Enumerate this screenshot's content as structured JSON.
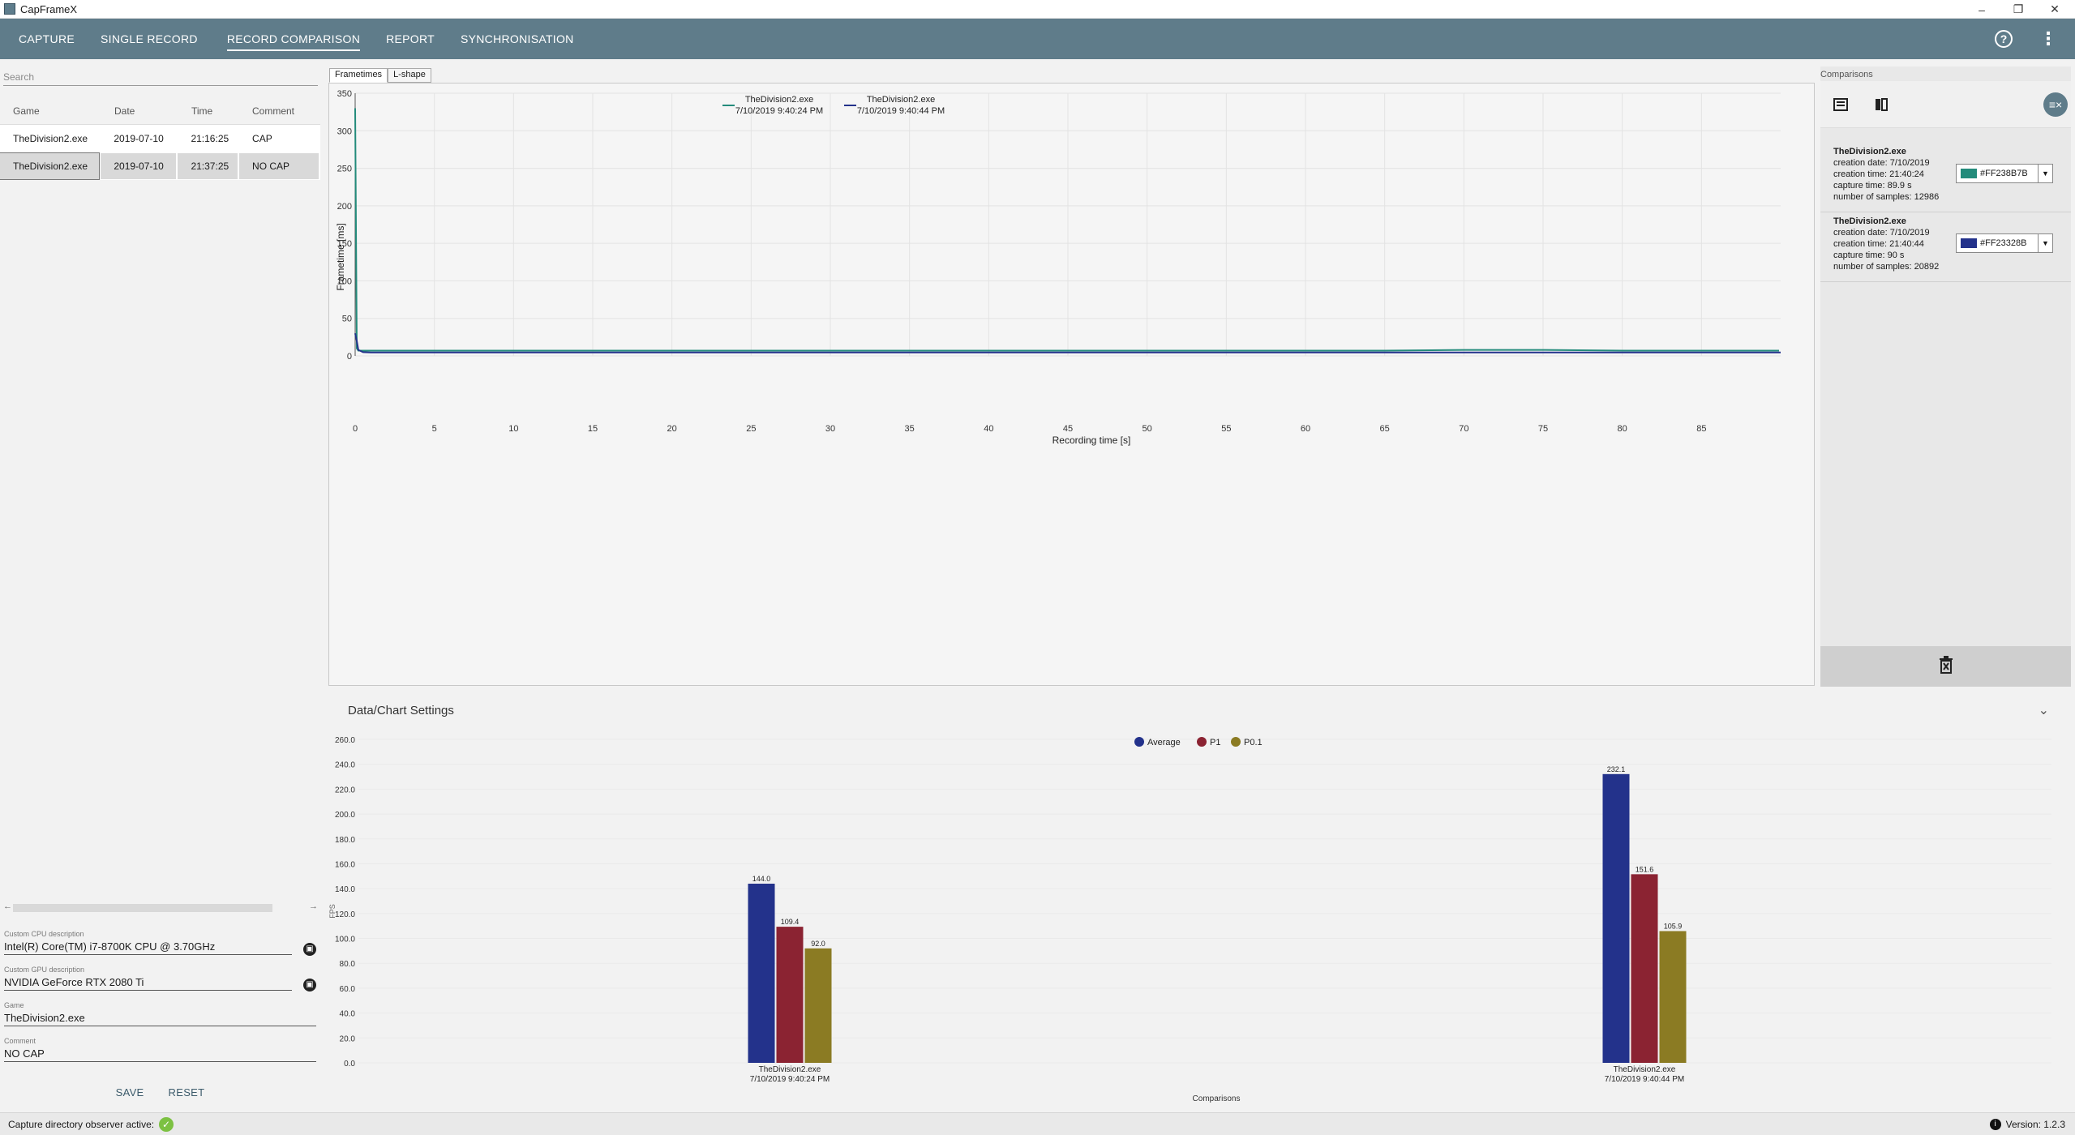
{
  "window": {
    "title": "CapFrameX"
  },
  "nav": {
    "tabs": [
      "CAPTURE",
      "SINGLE RECORD",
      "RECORD COMPARISON",
      "REPORT",
      "SYNCHRONISATION"
    ],
    "active": "RECORD COMPARISON"
  },
  "left": {
    "search_placeholder": "Search",
    "columns": [
      "Game",
      "Date",
      "Time",
      "Comment"
    ],
    "rows": [
      [
        "TheDivision2.exe",
        "2019-07-10",
        "21:16:25",
        "CAP"
      ],
      [
        "TheDivision2.exe",
        "2019-07-10",
        "21:37:25",
        "NO CAP"
      ]
    ],
    "selected_row": 1,
    "cpu_label": "Custom CPU description",
    "cpu_value": "Intel(R) Core(TM) i7-8700K CPU @ 3.70GHz",
    "gpu_label": "Custom GPU description",
    "gpu_value": "NVIDIA GeForce RTX 2080 Ti",
    "game_label": "Game",
    "game_value": "TheDivision2.exe",
    "comment_label": "Comment",
    "comment_value": "NO CAP",
    "save": "SAVE",
    "reset": "RESET"
  },
  "chart_tabs": [
    "Frametimes",
    "L-shape"
  ],
  "settings_title": "Data/Chart Settings",
  "right": {
    "title": "Comparisons",
    "items": [
      {
        "name": "TheDivision2.exe",
        "creation_date": "creation date: 7/10/2019",
        "creation_time": "creation time: 21:40:24",
        "capture_time": "capture time: 89.9 s",
        "samples": "number of samples: 12986",
        "color_label": "#FF238B7B",
        "color": "#238B7B"
      },
      {
        "name": "TheDivision2.exe",
        "creation_date": "creation date: 7/10/2019",
        "creation_time": "creation time: 21:40:44",
        "capture_time": "capture time: 90 s",
        "samples": "number of samples: 20892",
        "color_label": "#FF23328B",
        "color": "#23328B"
      }
    ]
  },
  "status": {
    "observer": "Capture directory observer active:",
    "version": "Version:  1.2.3"
  },
  "chart_data": [
    {
      "type": "line",
      "xlabel": "Recording time [s]",
      "ylabel": "Frametime [ms]",
      "xlim": [
        0,
        90
      ],
      "ylim": [
        0,
        350
      ],
      "xticks": [
        0,
        5,
        10,
        15,
        20,
        25,
        30,
        35,
        40,
        45,
        50,
        55,
        60,
        65,
        70,
        75,
        80,
        85
      ],
      "yticks": [
        0,
        50,
        100,
        150,
        200,
        250,
        300,
        350
      ],
      "legend_position": "top-center",
      "series": [
        {
          "name": "TheDivision2.exe\n7/10/2019 9:40:24 PM",
          "color": "#238B7B",
          "x": [
            0,
            0.1,
            0.2,
            0.5,
            1,
            5,
            10,
            15,
            20,
            25,
            30,
            35,
            40,
            45,
            50,
            55,
            60,
            65,
            70,
            75,
            80,
            85,
            89.9
          ],
          "y": [
            330,
            10,
            7,
            7,
            7,
            7,
            7,
            7,
            7,
            7,
            7,
            7,
            7,
            7,
            7,
            7,
            7,
            7,
            8,
            8,
            7,
            7,
            7
          ]
        },
        {
          "name": "TheDivision2.exe\n7/10/2019 9:40:44 PM",
          "color": "#23328B",
          "x": [
            0,
            0.1,
            0.2,
            0.5,
            1,
            5,
            10,
            15,
            20,
            25,
            30,
            35,
            40,
            45,
            50,
            55,
            60,
            65,
            70,
            75,
            80,
            85,
            90
          ],
          "y": [
            30,
            20,
            8,
            5,
            4.5,
            4.5,
            4.5,
            4.5,
            4.5,
            4.5,
            4.5,
            4.5,
            4.5,
            4.5,
            4.5,
            4.5,
            4.5,
            4.5,
            4.5,
            4.5,
            4.5,
            4.5,
            4.5
          ]
        }
      ]
    },
    {
      "type": "bar",
      "xlabel": "Comparisons",
      "ylabel": "FPS",
      "ylim": [
        0,
        260
      ],
      "yticks": [
        "0.0",
        "20.0",
        "40.0",
        "60.0",
        "80.0",
        "100.0",
        "120.0",
        "140.0",
        "160.0",
        "180.0",
        "200.0",
        "220.0",
        "240.0",
        "260.0"
      ],
      "categories": [
        "TheDivision2.exe\n7/10/2019 9:40:24 PM",
        "TheDivision2.exe\n7/10/2019 9:40:44 PM"
      ],
      "legend_position": "top-center",
      "series": [
        {
          "name": "Average",
          "color": "#23328B",
          "values": [
            144.0,
            232.1
          ]
        },
        {
          "name": "P1",
          "color": "#8B2332",
          "values": [
            109.4,
            151.6
          ]
        },
        {
          "name": "P0.1",
          "color": "#8B7B23",
          "values": [
            92.0,
            105.9
          ]
        }
      ]
    }
  ]
}
